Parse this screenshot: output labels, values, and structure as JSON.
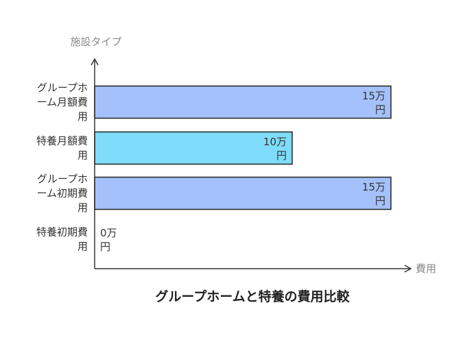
{
  "chart_data": {
    "type": "bar",
    "orientation": "horizontal",
    "title": "グループホームと特養の費用比較",
    "ylabel": "施設タイプ",
    "xlabel": "費用",
    "categories": [
      "グループホーム月額費用",
      "特養月額費用",
      "グループホーム初期費用",
      "特養初期費用"
    ],
    "category_lines": [
      [
        "グループホ",
        "ーム月額費",
        "用"
      ],
      [
        "特養月額費",
        "用"
      ],
      [
        "グループホ",
        "ーム初期費",
        "用"
      ],
      [
        "特養初期費",
        "用"
      ]
    ],
    "values": [
      15,
      10,
      15,
      0
    ],
    "value_labels": [
      [
        "15万",
        "円"
      ],
      [
        "10万",
        "円"
      ],
      [
        "15万",
        "円"
      ],
      [
        "0万",
        "円"
      ]
    ],
    "colors": [
      "#a4c1fb",
      "#7fdcfa",
      "#a4c1fb",
      "#a4c1fb"
    ],
    "xlim": [
      0,
      15
    ],
    "grid": false,
    "legend": "none"
  }
}
